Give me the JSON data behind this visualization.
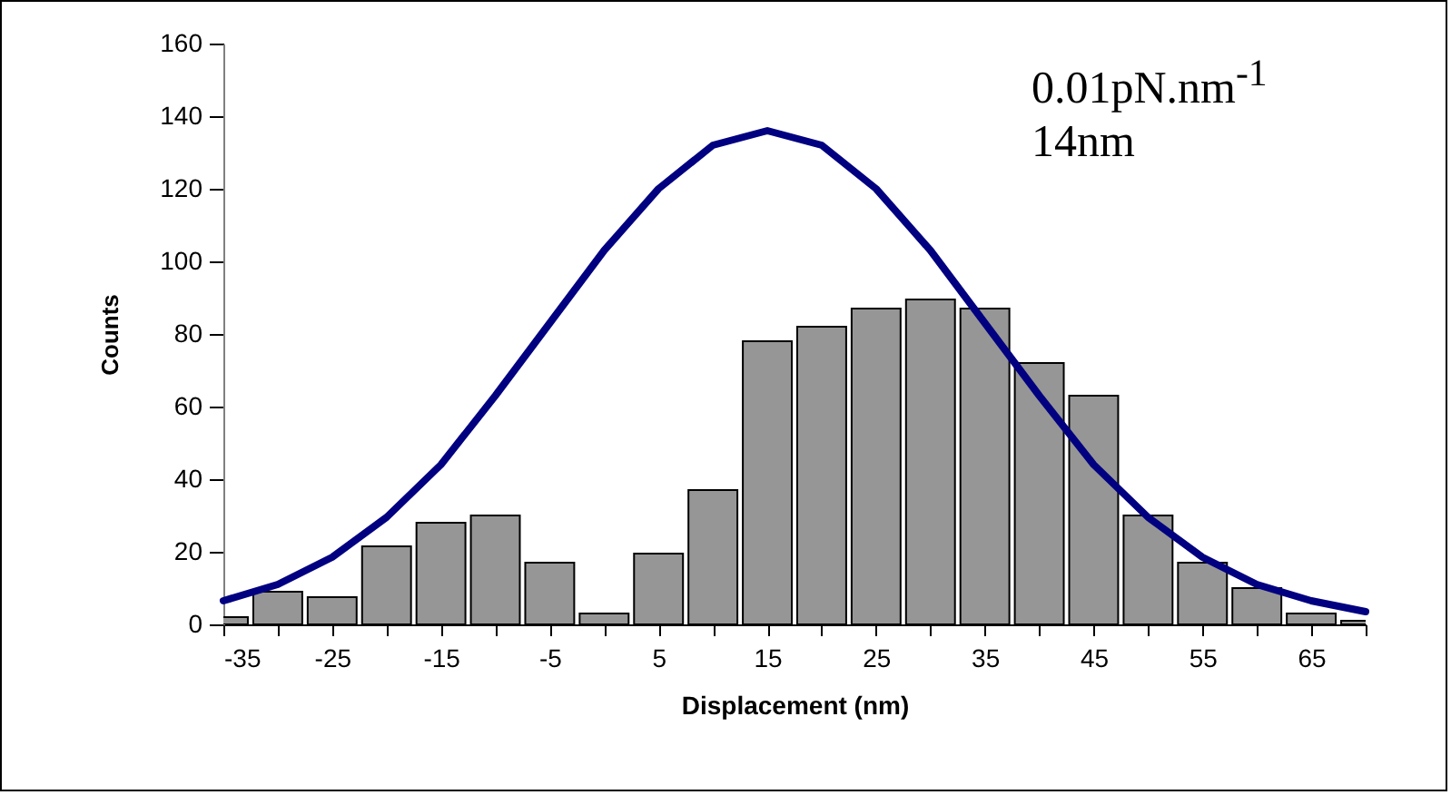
{
  "chart_data": {
    "type": "bar",
    "xlabel": "Displacement (nm)",
    "ylabel": "Counts",
    "annotations": [
      "0.01pN.nm$^{-1}$",
      "14nm"
    ],
    "x": [
      -35,
      -30,
      -25,
      -20,
      -15,
      -10,
      -5,
      0,
      5,
      10,
      15,
      20,
      25,
      30,
      35,
      40,
      45,
      50,
      55,
      60,
      65,
      70
    ],
    "series": [
      {
        "color": "#969696",
        "values": [
          2,
          9,
          7.5,
          21.5,
          28,
          30,
          17,
          3,
          19.5,
          37,
          78,
          82,
          87,
          89.5,
          87,
          72,
          63,
          30,
          17,
          10,
          3,
          1
        ]
      },
      {
        "type": "line",
        "color": "#000080",
        "values": [
          6.5,
          11,
          18.5,
          29.5,
          44,
          63,
          83,
          103,
          120,
          132,
          136,
          132,
          120,
          103,
          83,
          63,
          44,
          29.5,
          18.5,
          11,
          6.5,
          3.5
        ]
      }
    ],
    "xlim": [
      -35,
      70
    ],
    "xticks": [
      -35,
      {
        "value": -30,
        "label": null
      },
      -25,
      {
        "value": -20,
        "label": null
      },
      -15,
      {
        "value": -10,
        "label": null
      },
      -5,
      {
        "value": 0,
        "label": null
      },
      5,
      {
        "value": 10,
        "label": null
      },
      15,
      {
        "value": 20,
        "label": null
      },
      25,
      {
        "value": 30,
        "label": null
      },
      35,
      {
        "value": 40,
        "label": null
      },
      45,
      {
        "value": 50,
        "label": null
      },
      55,
      {
        "value": 60,
        "label": null
      },
      65,
      {
        "value": 70,
        "label": null
      }
    ],
    "ylim": [
      0,
      160
    ],
    "yticks": [
      0,
      20,
      40,
      60,
      80,
      100,
      120,
      140,
      160
    ]
  }
}
